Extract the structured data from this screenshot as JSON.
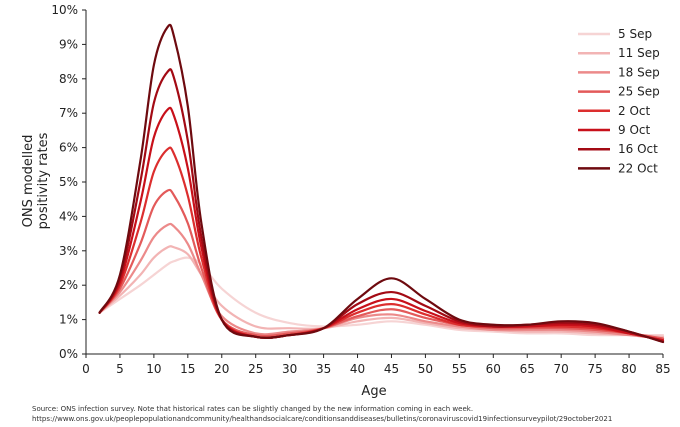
{
  "chart_data": {
    "type": "line",
    "xlabel": "Age",
    "ylabel_lines": [
      "ONS modelled",
      "positivity rates"
    ],
    "xlim": [
      0,
      85
    ],
    "ylim": [
      0,
      10
    ],
    "x_ticks": [
      0,
      5,
      10,
      15,
      20,
      25,
      30,
      35,
      40,
      45,
      50,
      55,
      60,
      65,
      70,
      75,
      80,
      85
    ],
    "y_ticks": [
      0,
      1,
      2,
      3,
      4,
      5,
      6,
      7,
      8,
      9,
      10
    ],
    "y_tick_labels": [
      "0%",
      "1%",
      "2%",
      "3%",
      "4%",
      "5%",
      "6%",
      "7%",
      "8%",
      "9%",
      "10%"
    ],
    "grid": false,
    "legend_position": "top-right",
    "x": [
      2,
      5,
      8,
      10,
      12,
      13,
      15,
      17,
      20,
      25,
      30,
      35,
      40,
      45,
      50,
      55,
      60,
      65,
      70,
      75,
      80,
      85
    ],
    "series": [
      {
        "name": "5 Sep",
        "color": "#f6d4d4",
        "values": [
          1.2,
          1.6,
          2.0,
          2.3,
          2.6,
          2.7,
          2.8,
          2.6,
          1.9,
          1.2,
          0.9,
          0.8,
          0.85,
          0.95,
          0.85,
          0.7,
          0.65,
          0.6,
          0.6,
          0.55,
          0.55,
          0.55
        ]
      },
      {
        "name": "11 Sep",
        "color": "#f2b4b4",
        "values": [
          1.2,
          1.7,
          2.3,
          2.8,
          3.1,
          3.1,
          2.9,
          2.3,
          1.4,
          0.8,
          0.75,
          0.75,
          0.95,
          1.05,
          0.9,
          0.75,
          0.7,
          0.65,
          0.65,
          0.6,
          0.55,
          0.5
        ]
      },
      {
        "name": "18 Sep",
        "color": "#ec8a8a",
        "values": [
          1.2,
          1.8,
          2.7,
          3.4,
          3.75,
          3.7,
          3.2,
          2.3,
          1.1,
          0.6,
          0.65,
          0.75,
          1.05,
          1.15,
          0.95,
          0.8,
          0.7,
          0.7,
          0.7,
          0.65,
          0.55,
          0.45
        ]
      },
      {
        "name": "25 Sep",
        "color": "#e35a5a",
        "values": [
          1.2,
          1.9,
          3.2,
          4.3,
          4.75,
          4.6,
          3.8,
          2.5,
          1.0,
          0.55,
          0.6,
          0.75,
          1.1,
          1.3,
          1.05,
          0.85,
          0.75,
          0.75,
          0.75,
          0.7,
          0.6,
          0.45
        ]
      },
      {
        "name": "2 Oct",
        "color": "#dc2e2e",
        "values": [
          1.2,
          2.0,
          3.8,
          5.3,
          5.95,
          5.8,
          4.6,
          2.8,
          1.0,
          0.5,
          0.55,
          0.75,
          1.2,
          1.45,
          1.15,
          0.85,
          0.8,
          0.8,
          0.8,
          0.75,
          0.6,
          0.4
        ]
      },
      {
        "name": "9 Oct",
        "color": "#c8101a",
        "values": [
          1.2,
          2.1,
          4.4,
          6.3,
          7.1,
          6.9,
          5.4,
          3.1,
          1.0,
          0.5,
          0.55,
          0.75,
          1.3,
          1.6,
          1.25,
          0.9,
          0.8,
          0.8,
          0.85,
          0.8,
          0.6,
          0.4
        ]
      },
      {
        "name": "16 Oct",
        "color": "#a30a14",
        "values": [
          1.2,
          2.2,
          5.0,
          7.3,
          8.2,
          8.0,
          6.2,
          3.4,
          1.0,
          0.5,
          0.55,
          0.75,
          1.45,
          1.8,
          1.4,
          0.95,
          0.8,
          0.85,
          0.9,
          0.85,
          0.65,
          0.35
        ]
      },
      {
        "name": "22 Oct",
        "color": "#6e0a0f",
        "values": [
          1.2,
          2.3,
          5.6,
          8.4,
          9.5,
          9.2,
          7.2,
          3.8,
          1.0,
          0.5,
          0.55,
          0.75,
          1.6,
          2.2,
          1.6,
          1.0,
          0.85,
          0.85,
          0.95,
          0.9,
          0.65,
          0.35
        ]
      }
    ]
  },
  "source": {
    "line1": "Source: ONS infection survey. Note that historical rates can be slightly changed by the new information coming in each week.",
    "line2": "https://www.ons.gov.uk/peoplepopulationandcommunity/healthandsocialcare/conditionsanddiseases/bulletins/coronaviruscovid19infectionsurveypilot/29october2021"
  }
}
